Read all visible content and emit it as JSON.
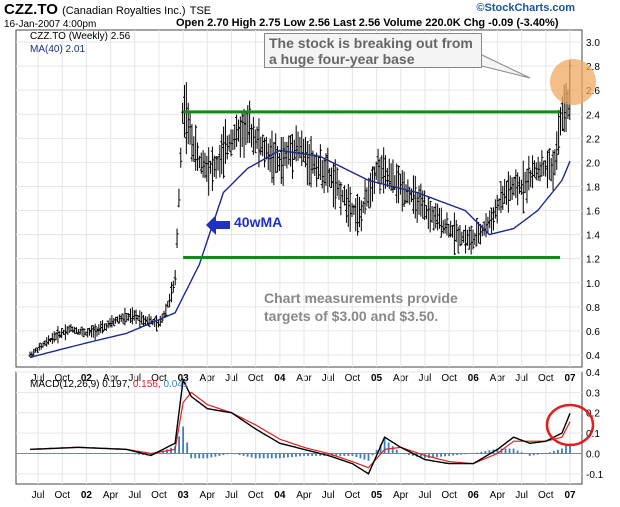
{
  "header": {
    "symbol": "CZZ.TO",
    "company": "(Canadian Royalties Inc.)",
    "exchange": "TSE",
    "date": "16-Jan-2007 4:00pm",
    "quote": "Open 2.70  High 2.75  Low 2.56  Last 2.56  Volume 220.0K  Chg -0.09 (-3.40%)",
    "brand_prefix": "©",
    "brand": "StockCharts.com"
  },
  "legend": {
    "price": "CZZ.TO (Weekly) 2.56",
    "ma": "MA(40) 2.01",
    "macd_label": "MACD(12,26,9)",
    "macd_value": "0.197,",
    "signal_value": "0.156,",
    "hist_value": "0.041"
  },
  "annotations": {
    "callout": "The stock is breaking out from a huge four-year base",
    "note": "Chart measurements provide targets of $3.00 and $3.50.",
    "arrow_label": "40wMA"
  },
  "colors": {
    "price_bars": "#000000",
    "ma_line": "#1c2a8c",
    "support_resistance": "#138a13",
    "macd_line": "#000000",
    "signal_line": "#e02020",
    "histogram": "#3a7fc0",
    "arrow": "#2030c0",
    "highlight_circle": "#e02020",
    "highlight_fill": "#f0a860"
  },
  "chart_data": [
    {
      "type": "ohlc",
      "title": "CZZ.TO (Weekly)",
      "ylim": [
        0.3,
        3.1
      ],
      "y_ticks": [
        0.4,
        0.6,
        0.8,
        1.0,
        1.2,
        1.4,
        1.6,
        1.8,
        2.0,
        2.2,
        2.4,
        2.6,
        2.8,
        3.0
      ],
      "x_tick_labels": [
        "Jul",
        "Oct",
        "02",
        "Apr",
        "Jul",
        "Oct",
        "03",
        "Apr",
        "Jul",
        "Oct",
        "04",
        "Apr",
        "Jul",
        "Oct",
        "05",
        "Apr",
        "Jul",
        "Oct",
        "06",
        "Apr",
        "Jul",
        "Oct",
        "07"
      ],
      "x_range": [
        "2001-06",
        "2007-01"
      ],
      "price_path": [
        [
          "2001-06",
          0.4
        ],
        [
          "2001-07",
          0.45
        ],
        [
          "2001-09",
          0.55
        ],
        [
          "2001-11",
          0.62
        ],
        [
          "2002-01",
          0.58
        ],
        [
          "2002-03",
          0.62
        ],
        [
          "2002-05",
          0.7
        ],
        [
          "2002-07",
          0.72
        ],
        [
          "2002-09",
          0.68
        ],
        [
          "2002-10",
          0.65
        ],
        [
          "2002-11",
          0.8
        ],
        [
          "2002-12",
          1.0
        ],
        [
          "2003-01",
          2.5
        ],
        [
          "2003-02",
          2.2
        ],
        [
          "2003-03",
          2.0
        ],
        [
          "2003-05",
          1.95
        ],
        [
          "2003-07",
          2.2
        ],
        [
          "2003-09",
          2.3
        ],
        [
          "2003-11",
          2.1
        ],
        [
          "2004-01",
          2.0
        ],
        [
          "2004-03",
          2.15
        ],
        [
          "2004-05",
          2.0
        ],
        [
          "2004-07",
          1.9
        ],
        [
          "2004-09",
          1.7
        ],
        [
          "2004-11",
          1.55
        ],
        [
          "2005-01",
          1.95
        ],
        [
          "2005-03",
          1.85
        ],
        [
          "2005-05",
          1.75
        ],
        [
          "2005-07",
          1.6
        ],
        [
          "2005-09",
          1.5
        ],
        [
          "2005-11",
          1.4
        ],
        [
          "2006-01",
          1.35
        ],
        [
          "2006-03",
          1.5
        ],
        [
          "2006-05",
          1.75
        ],
        [
          "2006-07",
          1.8
        ],
        [
          "2006-09",
          1.95
        ],
        [
          "2006-11",
          1.95
        ],
        [
          "2006-12",
          2.4
        ],
        [
          "2007-01",
          2.56
        ]
      ],
      "ma40_path": [
        [
          "2001-06",
          0.38
        ],
        [
          "2002-01",
          0.5
        ],
        [
          "2002-06",
          0.58
        ],
        [
          "2002-12",
          0.75
        ],
        [
          "2003-03",
          1.15
        ],
        [
          "2003-06",
          1.75
        ],
        [
          "2003-09",
          1.95
        ],
        [
          "2004-01",
          2.1
        ],
        [
          "2004-06",
          2.05
        ],
        [
          "2004-12",
          1.85
        ],
        [
          "2005-06",
          1.75
        ],
        [
          "2005-12",
          1.6
        ],
        [
          "2006-03",
          1.4
        ],
        [
          "2006-06",
          1.45
        ],
        [
          "2006-09",
          1.6
        ],
        [
          "2006-12",
          1.85
        ],
        [
          "2007-01",
          2.01
        ]
      ],
      "resistance": 2.42,
      "support": 1.21
    },
    {
      "type": "line",
      "title": "MACD(12,26,9)",
      "ylim": [
        -0.15,
        0.4
      ],
      "y_ticks": [
        -0.1,
        0.0,
        0.1,
        0.2,
        0.3,
        0.4
      ],
      "series": [
        {
          "name": "MACD",
          "values": [
            [
              "2001-06",
              0.02
            ],
            [
              "2001-12",
              0.03
            ],
            [
              "2002-06",
              0.02
            ],
            [
              "2002-09",
              -0.01
            ],
            [
              "2002-12",
              0.05
            ],
            [
              "2003-01",
              0.36
            ],
            [
              "2003-02",
              0.28
            ],
            [
              "2003-04",
              0.22
            ],
            [
              "2003-07",
              0.2
            ],
            [
              "2003-10",
              0.12
            ],
            [
              "2004-01",
              0.05
            ],
            [
              "2004-04",
              0.02
            ],
            [
              "2004-07",
              -0.01
            ],
            [
              "2004-10",
              -0.05
            ],
            [
              "2004-12",
              -0.1
            ],
            [
              "2005-02",
              0.08
            ],
            [
              "2005-04",
              0.03
            ],
            [
              "2005-07",
              -0.03
            ],
            [
              "2005-10",
              -0.05
            ],
            [
              "2006-01",
              -0.05
            ],
            [
              "2006-04",
              0.02
            ],
            [
              "2006-06",
              0.08
            ],
            [
              "2006-08",
              0.05
            ],
            [
              "2006-10",
              0.06
            ],
            [
              "2006-12",
              0.1
            ],
            [
              "2007-01",
              0.197
            ]
          ]
        },
        {
          "name": "Signal",
          "values": [
            [
              "2001-06",
              0.02
            ],
            [
              "2001-12",
              0.03
            ],
            [
              "2002-06",
              0.02
            ],
            [
              "2002-09",
              0.0
            ],
            [
              "2002-12",
              0.02
            ],
            [
              "2003-01",
              0.25
            ],
            [
              "2003-02",
              0.3
            ],
            [
              "2003-04",
              0.24
            ],
            [
              "2003-07",
              0.2
            ],
            [
              "2003-10",
              0.14
            ],
            [
              "2004-01",
              0.07
            ],
            [
              "2004-04",
              0.03
            ],
            [
              "2004-07",
              0.0
            ],
            [
              "2004-10",
              -0.04
            ],
            [
              "2004-12",
              -0.07
            ],
            [
              "2005-02",
              0.02
            ],
            [
              "2005-04",
              0.03
            ],
            [
              "2005-07",
              -0.01
            ],
            [
              "2005-10",
              -0.04
            ],
            [
              "2006-01",
              -0.05
            ],
            [
              "2006-04",
              0.0
            ],
            [
              "2006-06",
              0.06
            ],
            [
              "2006-08",
              0.06
            ],
            [
              "2006-10",
              0.06
            ],
            [
              "2006-12",
              0.08
            ],
            [
              "2007-01",
              0.156
            ]
          ]
        }
      ]
    }
  ]
}
